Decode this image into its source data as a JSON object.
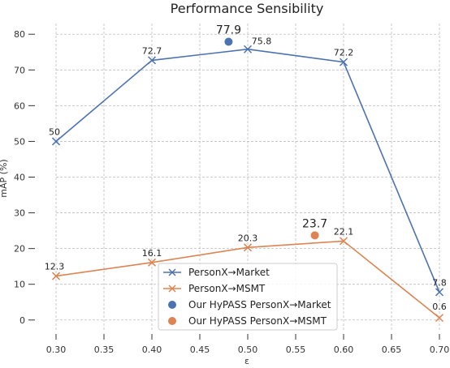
{
  "chart_data": {
    "type": "line",
    "title": "Performance Sensibility",
    "xlabel": "ε",
    "ylabel": "mAP (%)",
    "xlim": [
      0.3,
      0.7
    ],
    "ylim": [
      -3,
      83
    ],
    "xticks": [
      "0.30",
      "0.35",
      "0.40",
      "0.45",
      "0.50",
      "0.55",
      "0.60",
      "0.65",
      "0.70"
    ],
    "yticks": [
      "0",
      "10",
      "20",
      "30",
      "40",
      "50",
      "60",
      "70",
      "80"
    ],
    "grid": true,
    "legend_position": "lower-center",
    "series": [
      {
        "name": "PersonX→Market",
        "color": "#4c72b0",
        "marker": "x",
        "x": [
          0.3,
          0.4,
          0.5,
          0.6,
          0.7
        ],
        "y": [
          50,
          72.7,
          75.8,
          72.2,
          7.8
        ],
        "labels": [
          "50",
          "72.7",
          "75.8",
          "72.2",
          "7.8"
        ]
      },
      {
        "name": "PersonX→MSMT",
        "color": "#dd8452",
        "marker": "x",
        "x": [
          0.3,
          0.4,
          0.5,
          0.6,
          0.7
        ],
        "y": [
          12.3,
          16.1,
          20.3,
          22.1,
          0.6
        ],
        "labels": [
          "12.3",
          "16.1",
          "20.3",
          "22.1",
          "0.6"
        ]
      }
    ],
    "points": [
      {
        "name": "Our HyPASS PersonX→Market",
        "color": "#4c72b0",
        "x": 0.48,
        "y": 77.9,
        "label": "77.9"
      },
      {
        "name": "Our HyPASS PersonX→MSMT",
        "color": "#dd8452",
        "x": 0.57,
        "y": 23.7,
        "label": "23.7"
      }
    ]
  }
}
